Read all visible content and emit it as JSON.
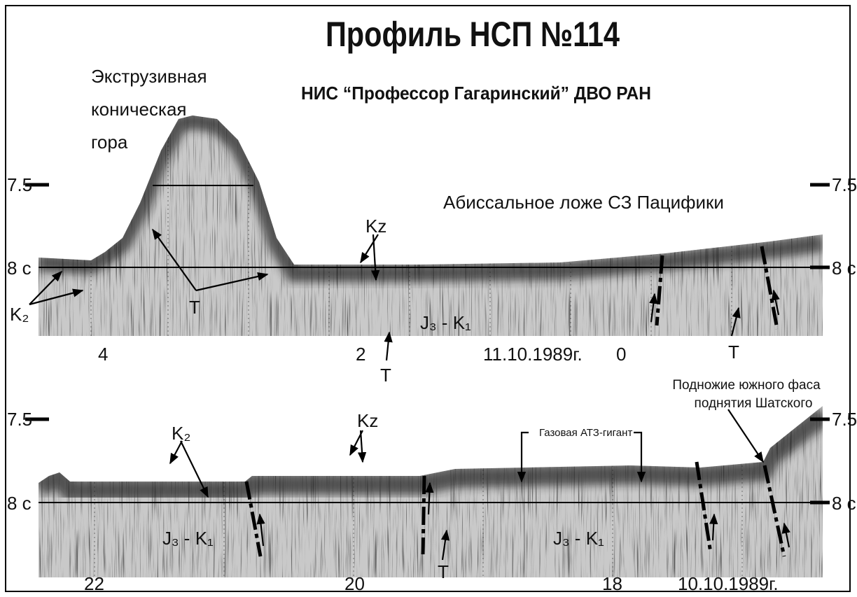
{
  "title": "Профиль НСП №114",
  "subtitle": "НИС “Профессор Гагаринский” ДВО РАН",
  "panels": [
    {
      "depth_labels": [
        "7.5",
        "8 с"
      ],
      "annotations": [
        "Экструзивная",
        "коническая",
        "гора",
        "Абиссальное ложе СЗ Пацифики",
        "Kz",
        "K₂",
        "T",
        "J₃ - K₁",
        "T",
        "T"
      ],
      "axis_labels": [
        "4",
        "2",
        "11.10.1989г.",
        "0"
      ]
    },
    {
      "depth_labels": [
        "7.5",
        "8 с"
      ],
      "annotations": [
        "K₂",
        "Kz",
        "Газовая АТЗ-гигант",
        "Подножие южного фаса",
        "поднятия Шатского",
        "J₃ - K₁",
        "J₃ - K₁",
        "T"
      ],
      "axis_labels": [
        "22",
        "20",
        "18",
        "10.10.1989г."
      ]
    }
  ]
}
